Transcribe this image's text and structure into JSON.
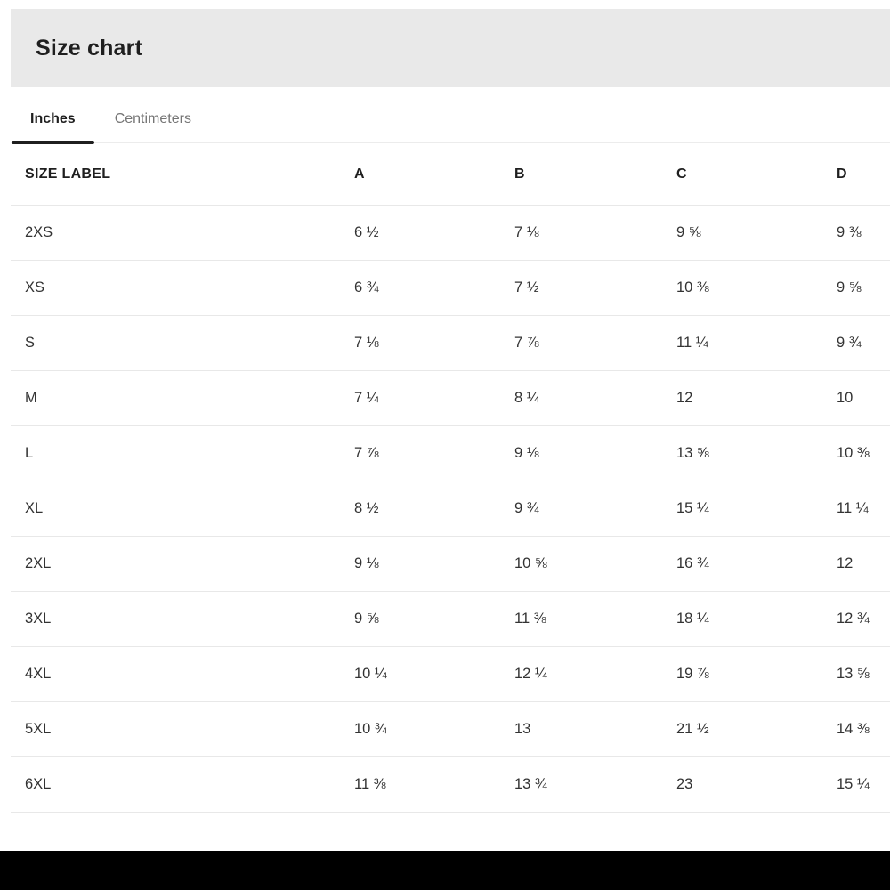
{
  "header": {
    "title": "Size chart"
  },
  "tabs": [
    {
      "label": "Inches",
      "active": true
    },
    {
      "label": "Centimeters",
      "active": false
    }
  ],
  "table": {
    "columns": [
      "SIZE LABEL",
      "A",
      "B",
      "C",
      "D"
    ],
    "rows": [
      {
        "label": "2XS",
        "values": [
          "6 ½",
          "7 ⅛",
          "9 ⅝",
          "9 ⅜"
        ]
      },
      {
        "label": "XS",
        "values": [
          "6 ¾",
          "7 ½",
          "10 ⅜",
          "9 ⅝"
        ]
      },
      {
        "label": "S",
        "values": [
          "7 ⅛",
          "7 ⅞",
          "11 ¼",
          "9 ¾"
        ]
      },
      {
        "label": "M",
        "values": [
          "7 ¼",
          "8 ¼",
          "12",
          "10"
        ]
      },
      {
        "label": "L",
        "values": [
          "7 ⅞",
          "9 ⅛",
          "13 ⅝",
          "10 ⅜"
        ]
      },
      {
        "label": "XL",
        "values": [
          "8 ½",
          "9 ¾",
          "15 ¼",
          "11 ¼"
        ]
      },
      {
        "label": "2XL",
        "values": [
          "9 ⅛",
          "10 ⅝",
          "16 ¾",
          "12"
        ]
      },
      {
        "label": "3XL",
        "values": [
          "9 ⅝",
          "11 ⅜",
          "18 ¼",
          "12 ¾"
        ]
      },
      {
        "label": "4XL",
        "values": [
          "10 ¼",
          "12 ¼",
          "19 ⅞",
          "13 ⅝"
        ]
      },
      {
        "label": "5XL",
        "values": [
          "10 ¾",
          "13",
          "21 ½",
          "14 ⅜"
        ]
      },
      {
        "label": "6XL",
        "values": [
          "11 ⅜",
          "13 ¾",
          "23",
          "15 ¼"
        ]
      }
    ]
  },
  "colors": {
    "header_band_bg": "#e9e9e9",
    "title_text": "#1f1f1f",
    "active_tab_text": "#1f1f1f",
    "active_tab_underline": "#1f1f1f",
    "inactive_tab_text": "#757575",
    "row_border": "#e8e8e8",
    "cell_text": "#333333",
    "bottom_bar": "#000000"
  }
}
